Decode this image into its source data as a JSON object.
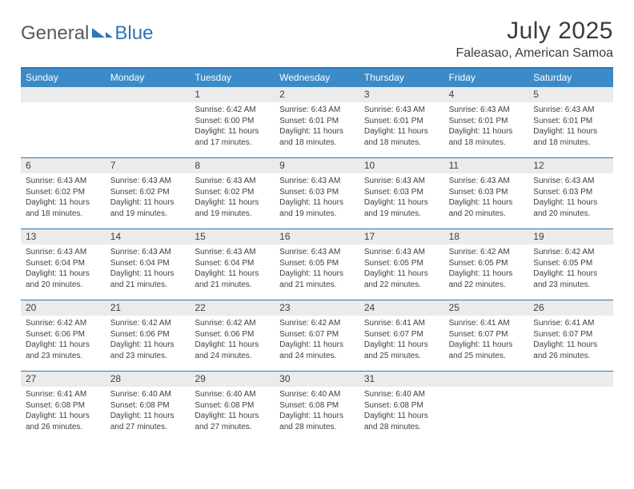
{
  "brand": {
    "part1": "General",
    "part2": "Blue"
  },
  "title": "July 2025",
  "location": "Faleasao, American Samoa",
  "colors": {
    "header_bg": "#3b8bc9",
    "rule": "#2f75b5",
    "dayrow_bg": "#ebebeb",
    "text": "#404040"
  },
  "fonts": {
    "weekday_size": 12,
    "daynum_size": 12,
    "detail_size": 10,
    "title_size": 30,
    "subtitle_size": 16
  },
  "weekdays": [
    "Sunday",
    "Monday",
    "Tuesday",
    "Wednesday",
    "Thursday",
    "Friday",
    "Saturday"
  ],
  "weeks": [
    [
      {
        "n": "",
        "sr": "",
        "ss": "",
        "dl1": "",
        "dl2": ""
      },
      {
        "n": "",
        "sr": "",
        "ss": "",
        "dl1": "",
        "dl2": ""
      },
      {
        "n": "1",
        "sr": "Sunrise: 6:42 AM",
        "ss": "Sunset: 6:00 PM",
        "dl1": "Daylight: 11 hours",
        "dl2": "and 17 minutes."
      },
      {
        "n": "2",
        "sr": "Sunrise: 6:43 AM",
        "ss": "Sunset: 6:01 PM",
        "dl1": "Daylight: 11 hours",
        "dl2": "and 18 minutes."
      },
      {
        "n": "3",
        "sr": "Sunrise: 6:43 AM",
        "ss": "Sunset: 6:01 PM",
        "dl1": "Daylight: 11 hours",
        "dl2": "and 18 minutes."
      },
      {
        "n": "4",
        "sr": "Sunrise: 6:43 AM",
        "ss": "Sunset: 6:01 PM",
        "dl1": "Daylight: 11 hours",
        "dl2": "and 18 minutes."
      },
      {
        "n": "5",
        "sr": "Sunrise: 6:43 AM",
        "ss": "Sunset: 6:01 PM",
        "dl1": "Daylight: 11 hours",
        "dl2": "and 18 minutes."
      }
    ],
    [
      {
        "n": "6",
        "sr": "Sunrise: 6:43 AM",
        "ss": "Sunset: 6:02 PM",
        "dl1": "Daylight: 11 hours",
        "dl2": "and 18 minutes."
      },
      {
        "n": "7",
        "sr": "Sunrise: 6:43 AM",
        "ss": "Sunset: 6:02 PM",
        "dl1": "Daylight: 11 hours",
        "dl2": "and 19 minutes."
      },
      {
        "n": "8",
        "sr": "Sunrise: 6:43 AM",
        "ss": "Sunset: 6:02 PM",
        "dl1": "Daylight: 11 hours",
        "dl2": "and 19 minutes."
      },
      {
        "n": "9",
        "sr": "Sunrise: 6:43 AM",
        "ss": "Sunset: 6:03 PM",
        "dl1": "Daylight: 11 hours",
        "dl2": "and 19 minutes."
      },
      {
        "n": "10",
        "sr": "Sunrise: 6:43 AM",
        "ss": "Sunset: 6:03 PM",
        "dl1": "Daylight: 11 hours",
        "dl2": "and 19 minutes."
      },
      {
        "n": "11",
        "sr": "Sunrise: 6:43 AM",
        "ss": "Sunset: 6:03 PM",
        "dl1": "Daylight: 11 hours",
        "dl2": "and 20 minutes."
      },
      {
        "n": "12",
        "sr": "Sunrise: 6:43 AM",
        "ss": "Sunset: 6:03 PM",
        "dl1": "Daylight: 11 hours",
        "dl2": "and 20 minutes."
      }
    ],
    [
      {
        "n": "13",
        "sr": "Sunrise: 6:43 AM",
        "ss": "Sunset: 6:04 PM",
        "dl1": "Daylight: 11 hours",
        "dl2": "and 20 minutes."
      },
      {
        "n": "14",
        "sr": "Sunrise: 6:43 AM",
        "ss": "Sunset: 6:04 PM",
        "dl1": "Daylight: 11 hours",
        "dl2": "and 21 minutes."
      },
      {
        "n": "15",
        "sr": "Sunrise: 6:43 AM",
        "ss": "Sunset: 6:04 PM",
        "dl1": "Daylight: 11 hours",
        "dl2": "and 21 minutes."
      },
      {
        "n": "16",
        "sr": "Sunrise: 6:43 AM",
        "ss": "Sunset: 6:05 PM",
        "dl1": "Daylight: 11 hours",
        "dl2": "and 21 minutes."
      },
      {
        "n": "17",
        "sr": "Sunrise: 6:43 AM",
        "ss": "Sunset: 6:05 PM",
        "dl1": "Daylight: 11 hours",
        "dl2": "and 22 minutes."
      },
      {
        "n": "18",
        "sr": "Sunrise: 6:42 AM",
        "ss": "Sunset: 6:05 PM",
        "dl1": "Daylight: 11 hours",
        "dl2": "and 22 minutes."
      },
      {
        "n": "19",
        "sr": "Sunrise: 6:42 AM",
        "ss": "Sunset: 6:05 PM",
        "dl1": "Daylight: 11 hours",
        "dl2": "and 23 minutes."
      }
    ],
    [
      {
        "n": "20",
        "sr": "Sunrise: 6:42 AM",
        "ss": "Sunset: 6:06 PM",
        "dl1": "Daylight: 11 hours",
        "dl2": "and 23 minutes."
      },
      {
        "n": "21",
        "sr": "Sunrise: 6:42 AM",
        "ss": "Sunset: 6:06 PM",
        "dl1": "Daylight: 11 hours",
        "dl2": "and 23 minutes."
      },
      {
        "n": "22",
        "sr": "Sunrise: 6:42 AM",
        "ss": "Sunset: 6:06 PM",
        "dl1": "Daylight: 11 hours",
        "dl2": "and 24 minutes."
      },
      {
        "n": "23",
        "sr": "Sunrise: 6:42 AM",
        "ss": "Sunset: 6:07 PM",
        "dl1": "Daylight: 11 hours",
        "dl2": "and 24 minutes."
      },
      {
        "n": "24",
        "sr": "Sunrise: 6:41 AM",
        "ss": "Sunset: 6:07 PM",
        "dl1": "Daylight: 11 hours",
        "dl2": "and 25 minutes."
      },
      {
        "n": "25",
        "sr": "Sunrise: 6:41 AM",
        "ss": "Sunset: 6:07 PM",
        "dl1": "Daylight: 11 hours",
        "dl2": "and 25 minutes."
      },
      {
        "n": "26",
        "sr": "Sunrise: 6:41 AM",
        "ss": "Sunset: 6:07 PM",
        "dl1": "Daylight: 11 hours",
        "dl2": "and 26 minutes."
      }
    ],
    [
      {
        "n": "27",
        "sr": "Sunrise: 6:41 AM",
        "ss": "Sunset: 6:08 PM",
        "dl1": "Daylight: 11 hours",
        "dl2": "and 26 minutes."
      },
      {
        "n": "28",
        "sr": "Sunrise: 6:40 AM",
        "ss": "Sunset: 6:08 PM",
        "dl1": "Daylight: 11 hours",
        "dl2": "and 27 minutes."
      },
      {
        "n": "29",
        "sr": "Sunrise: 6:40 AM",
        "ss": "Sunset: 6:08 PM",
        "dl1": "Daylight: 11 hours",
        "dl2": "and 27 minutes."
      },
      {
        "n": "30",
        "sr": "Sunrise: 6:40 AM",
        "ss": "Sunset: 6:08 PM",
        "dl1": "Daylight: 11 hours",
        "dl2": "and 28 minutes."
      },
      {
        "n": "31",
        "sr": "Sunrise: 6:40 AM",
        "ss": "Sunset: 6:08 PM",
        "dl1": "Daylight: 11 hours",
        "dl2": "and 28 minutes."
      },
      {
        "n": "",
        "sr": "",
        "ss": "",
        "dl1": "",
        "dl2": ""
      },
      {
        "n": "",
        "sr": "",
        "ss": "",
        "dl1": "",
        "dl2": ""
      }
    ]
  ]
}
